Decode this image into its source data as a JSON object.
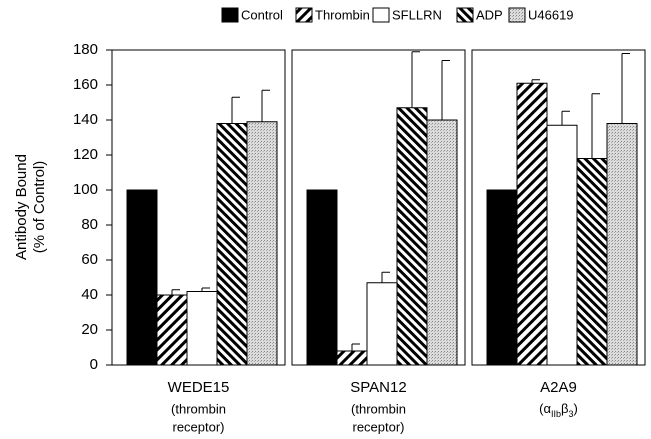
{
  "chart_data": {
    "type": "bar",
    "y_label_lines": [
      "Antibody Bound",
      "(% of Control)"
    ],
    "categories": [
      "WEDE15",
      "SPAN12",
      "A2A9"
    ],
    "sublabels": [
      {
        "lines": [
          "(thrombin",
          "receptor)"
        ]
      },
      {
        "lines": [
          "(thrombin",
          "receptor)"
        ]
      },
      {
        "parts": [
          {
            "text": "(α"
          },
          {
            "text": "IIb",
            "sub": true
          },
          {
            "text": "β"
          },
          {
            "text": "3",
            "sub": true
          },
          {
            "text": ")"
          }
        ]
      }
    ],
    "series": [
      {
        "name": "Control",
        "color": "#000000",
        "pattern": "solid",
        "values": [
          100,
          100,
          100
        ]
      },
      {
        "name": "Thrombin",
        "color": "#000000",
        "pattern": "hatch-fwd",
        "values": [
          40,
          8,
          161
        ],
        "errors": [
          3,
          4,
          2
        ]
      },
      {
        "name": "SFLLRN",
        "color": "#ffffff",
        "pattern": "solid",
        "values": [
          42,
          47,
          137
        ],
        "errors": [
          2,
          6,
          8
        ]
      },
      {
        "name": "ADP",
        "color": "#000000",
        "pattern": "hatch-back",
        "values": [
          138,
          147,
          118
        ],
        "errors": [
          15,
          32,
          37
        ]
      },
      {
        "name": "U46619",
        "color": "#c8c8c8",
        "pattern": "stipple",
        "values": [
          139,
          140,
          138
        ],
        "errors": [
          18,
          34,
          40
        ]
      }
    ],
    "ylim": [
      0,
      180
    ],
    "yticks": [
      0,
      20,
      40,
      60,
      80,
      100,
      120,
      140,
      160,
      180
    ]
  }
}
